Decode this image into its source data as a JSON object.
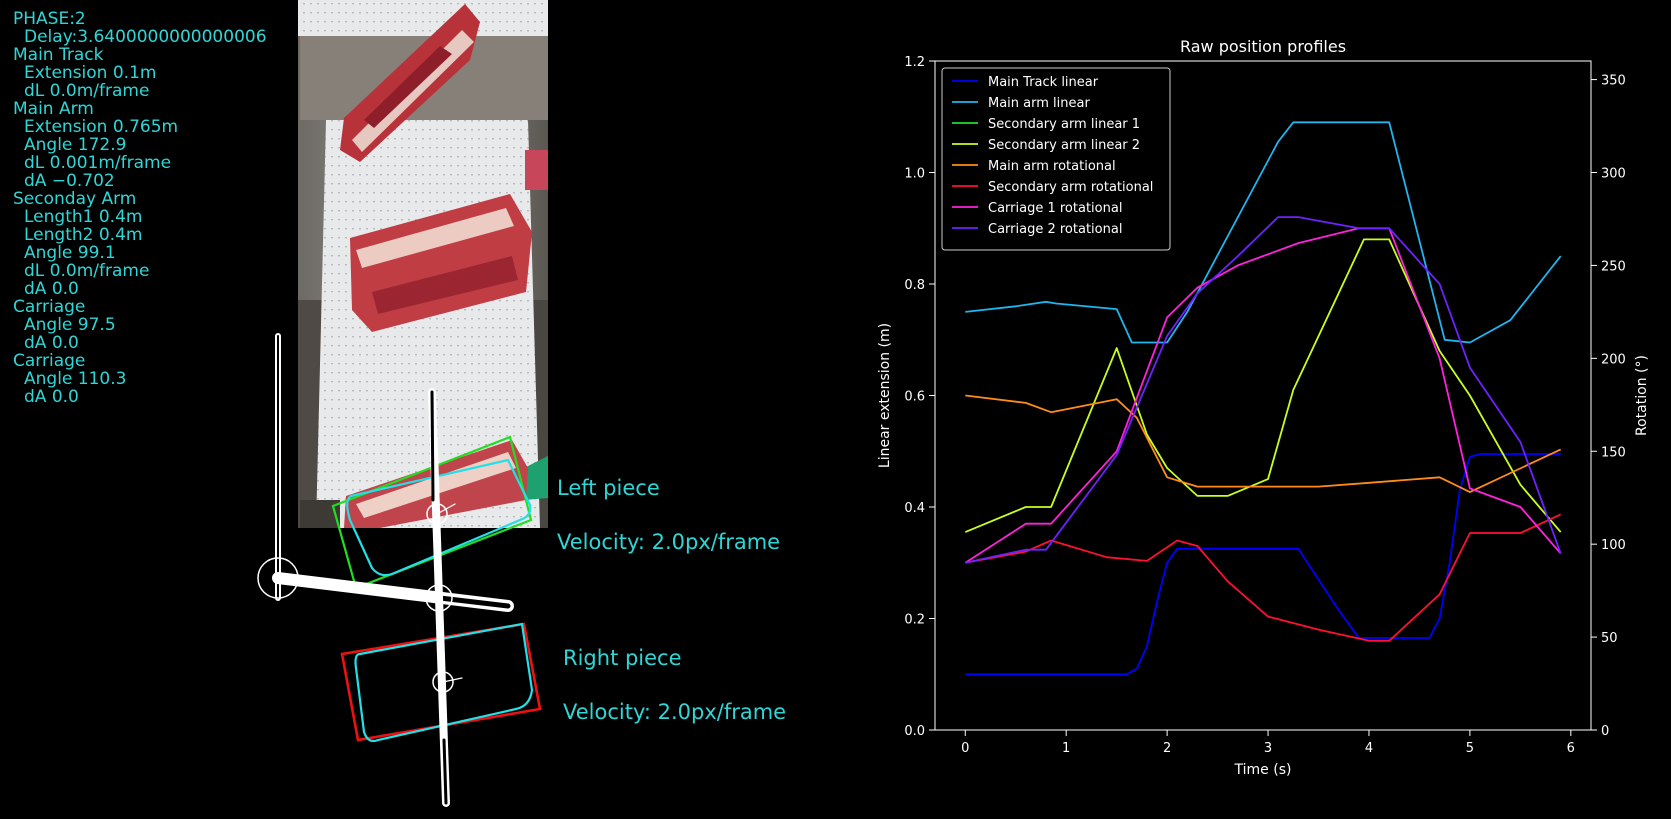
{
  "hud": {
    "lines": [
      {
        "text": "PHASE:2",
        "indent": false
      },
      {
        "text": "Delay:3.6400000000000006",
        "indent": true
      },
      {
        "text": "Main Track",
        "indent": false
      },
      {
        "text": "Extension 0.1m",
        "indent": true
      },
      {
        "text": "dL 0.0m/frame",
        "indent": true
      },
      {
        "text": "Main Arm",
        "indent": false
      },
      {
        "text": "Extension 0.765m",
        "indent": true
      },
      {
        "text": "Angle 172.9",
        "indent": true
      },
      {
        "text": "dL 0.001m/frame",
        "indent": true
      },
      {
        "text": "dA −0.702",
        "indent": true
      },
      {
        "text": "Seconday Arm",
        "indent": false
      },
      {
        "text": "Length1 0.4m",
        "indent": true
      },
      {
        "text": "Length2 0.4m",
        "indent": true
      },
      {
        "text": "Angle 99.1",
        "indent": true
      },
      {
        "text": "dL 0.0m/frame",
        "indent": true
      },
      {
        "text": "dA 0.0",
        "indent": true
      },
      {
        "text": "Carriage",
        "indent": false
      },
      {
        "text": "Angle 97.5",
        "indent": true
      },
      {
        "text": "dA 0.0",
        "indent": true
      },
      {
        "text": "Carriage",
        "indent": false
      },
      {
        "text": "Angle 110.3",
        "indent": true
      },
      {
        "text": "dA 0.0",
        "indent": true
      }
    ]
  },
  "pieces": {
    "left": {
      "name": "Left piece",
      "velocity": "Velocity: 2.0px/frame",
      "box_color": "#22dd22"
    },
    "right": {
      "name": "Right piece",
      "velocity": "Velocity: 2.0px/frame",
      "box_color": "#ee1111"
    },
    "contour_color": "#22e0e8"
  },
  "chart_data": {
    "type": "line",
    "title": "Raw position profiles",
    "xlabel": "Time (s)",
    "ylabel": "Linear extension (m)",
    "y2label": "Rotation (°)",
    "xlim": [
      -0.3,
      6.2
    ],
    "ylim": [
      0,
      1.2
    ],
    "y2lim": [
      0,
      360
    ],
    "xticks": [
      0,
      1,
      2,
      3,
      4,
      5,
      6
    ],
    "yticks": [
      0.0,
      0.2,
      0.4,
      0.6,
      0.8,
      1.0,
      1.2
    ],
    "ytick_labels": [
      "0.0",
      "0.2",
      "0.4",
      "0.6",
      "0.8",
      "1.0",
      "1.2"
    ],
    "y2ticks": [
      0,
      50,
      100,
      150,
      200,
      250,
      300,
      350
    ],
    "legend_position": "top-left",
    "series": [
      {
        "name": "Main Track linear",
        "axis": "left",
        "color": "#0000ff",
        "x": [
          0,
          1.6,
          1.7,
          1.8,
          1.9,
          2.0,
          2.1,
          2.2,
          3.3,
          3.5,
          3.7,
          3.9,
          4.6,
          4.7,
          4.8,
          4.9,
          5.0,
          5.1,
          5.9
        ],
        "y": [
          0.1,
          0.1,
          0.11,
          0.15,
          0.23,
          0.3,
          0.325,
          0.325,
          0.325,
          0.27,
          0.215,
          0.165,
          0.165,
          0.2,
          0.3,
          0.43,
          0.49,
          0.495,
          0.495
        ]
      },
      {
        "name": "Main arm linear",
        "axis": "left",
        "color": "#1fb5ef",
        "x": [
          0,
          0.5,
          0.8,
          0.9,
          1.5,
          1.65,
          2.0,
          2.2,
          3.1,
          3.25,
          4.2,
          4.75,
          5.0,
          5.4,
          5.9
        ],
        "y": [
          0.75,
          0.76,
          0.768,
          0.765,
          0.755,
          0.695,
          0.695,
          0.75,
          1.055,
          1.09,
          1.09,
          0.7,
          0.695,
          0.735,
          0.85
        ]
      },
      {
        "name": "Secondary arm linear 1",
        "axis": "left",
        "color": "#22dd22",
        "x": [],
        "y": []
      },
      {
        "name": "Secondary arm linear 2",
        "axis": "left",
        "color": "#c8ff1e",
        "x": [
          0,
          0.6,
          0.85,
          1.5,
          1.8,
          2.0,
          2.3,
          2.6,
          3.0,
          3.25,
          3.95,
          4.2,
          4.7,
          5.0,
          5.5,
          5.9
        ],
        "y": [
          0.355,
          0.4,
          0.4,
          0.685,
          0.53,
          0.47,
          0.42,
          0.42,
          0.45,
          0.61,
          0.88,
          0.88,
          0.68,
          0.6,
          0.44,
          0.355
        ]
      },
      {
        "name": "Main arm rotational",
        "axis": "right",
        "color": "#ff8c1a",
        "x": [
          0,
          0.6,
          0.85,
          1.5,
          1.7,
          2.0,
          2.3,
          3.0,
          3.5,
          4.0,
          4.7,
          5.0,
          5.9
        ],
        "y": [
          180,
          176,
          171,
          178,
          168,
          136,
          131,
          131,
          131,
          133,
          136,
          128,
          151
        ]
      },
      {
        "name": "Secondary arm rotational",
        "axis": "right",
        "color": "#ff1033",
        "x": [
          0,
          0.6,
          0.85,
          1.4,
          1.8,
          2.1,
          2.3,
          2.6,
          3.0,
          3.5,
          4.0,
          4.2,
          4.7,
          5.0,
          5.5,
          5.9
        ],
        "y": [
          90,
          96,
          102,
          93,
          91,
          102,
          99,
          80,
          61,
          54,
          48,
          48,
          73,
          106,
          106,
          116
        ]
      },
      {
        "name": "Carriage 1 rotational",
        "axis": "right",
        "color": "#ff22dd",
        "x": [
          0,
          0.6,
          0.85,
          1.5,
          2.0,
          2.3,
          2.7,
          3.3,
          3.9,
          4.2,
          4.7,
          5.0,
          5.5,
          5.9
        ],
        "y": [
          90,
          111,
          111,
          150,
          222,
          238,
          250,
          262,
          270,
          270,
          200,
          130,
          120,
          95
        ]
      },
      {
        "name": "Carriage 2 rotational",
        "axis": "right",
        "color": "#6e22ff",
        "x": [
          0,
          0.6,
          0.8,
          1.5,
          2.0,
          2.3,
          2.7,
          3.1,
          3.3,
          3.9,
          4.2,
          4.7,
          5.0,
          5.5,
          5.9
        ],
        "y": [
          90,
          97,
          97,
          148,
          212,
          235,
          255,
          276,
          276,
          270,
          270,
          240,
          195,
          155,
          95
        ]
      }
    ]
  }
}
